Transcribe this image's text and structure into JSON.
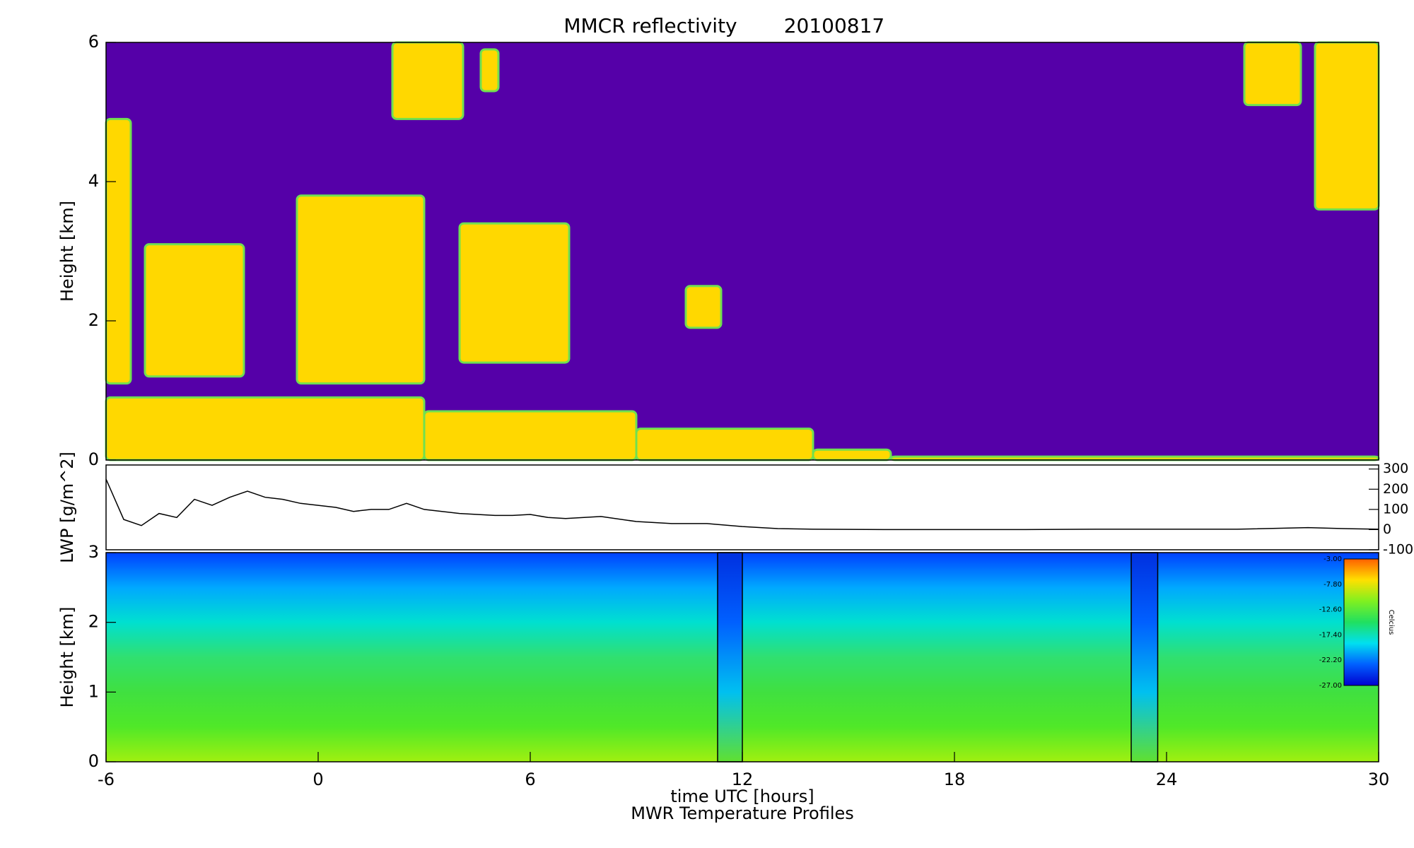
{
  "chart_data": [
    {
      "type": "heatmap",
      "title": "MMCR reflectivity",
      "subtitle": "20100817",
      "y_label": "Height [km]",
      "xlim": [
        -6,
        30
      ],
      "ylim": [
        0,
        6
      ],
      "yticks": [
        0,
        2,
        4,
        6
      ],
      "background": "#5500a8",
      "color": "#ffd800",
      "regions": [
        {
          "x": [
            -6,
            -5.3
          ],
          "y": [
            1.1,
            4.9
          ]
        },
        {
          "x": [
            -6,
            3
          ],
          "y": [
            0,
            0.9
          ]
        },
        {
          "x": [
            3,
            9
          ],
          "y": [
            0,
            0.7
          ]
        },
        {
          "x": [
            9,
            14
          ],
          "y": [
            0,
            0.45
          ]
        },
        {
          "x": [
            14,
            16.2
          ],
          "y": [
            0,
            0.15
          ]
        },
        {
          "x": [
            16.2,
            30
          ],
          "y": [
            0,
            0.05
          ]
        },
        {
          "x": [
            -4.9,
            -2.1
          ],
          "y": [
            1.2,
            3.1
          ]
        },
        {
          "x": [
            -0.6,
            3.0
          ],
          "y": [
            1.1,
            3.8
          ]
        },
        {
          "x": [
            4.0,
            7.1
          ],
          "y": [
            1.4,
            3.4
          ]
        },
        {
          "x": [
            10.4,
            11.4
          ],
          "y": [
            1.9,
            2.5
          ]
        },
        {
          "x": [
            2.1,
            4.1
          ],
          "y": [
            4.9,
            6
          ]
        },
        {
          "x": [
            4.6,
            5.1
          ],
          "y": [
            5.3,
            5.9
          ]
        },
        {
          "x": [
            26.2,
            27.8
          ],
          "y": [
            5.1,
            6
          ]
        },
        {
          "x": [
            28.2,
            30
          ],
          "y": [
            3.6,
            6
          ]
        }
      ]
    },
    {
      "type": "line",
      "y_label": "LWP [g/m^2]",
      "xlim": [
        -6,
        30
      ],
      "ylim": [
        -100,
        320
      ],
      "yticks": [
        -100,
        0,
        100,
        200,
        300
      ],
      "color": "#000000",
      "x": [
        -6,
        -5.5,
        -5,
        -4.5,
        -4,
        -3.5,
        -3,
        -2.5,
        -2,
        -1.5,
        -1,
        -0.5,
        0,
        0.5,
        1,
        1.5,
        2,
        2.5,
        3,
        3.5,
        4,
        4.5,
        5,
        5.5,
        6,
        6.5,
        7,
        8,
        9,
        10,
        11,
        12,
        13,
        14,
        16,
        18,
        20,
        22,
        24,
        26,
        28,
        29,
        30
      ],
      "series": [
        {
          "values": [
            250,
            50,
            20,
            80,
            60,
            150,
            120,
            160,
            190,
            160,
            150,
            130,
            120,
            110,
            90,
            100,
            100,
            130,
            100,
            90,
            80,
            75,
            70,
            70,
            75,
            60,
            55,
            65,
            40,
            30,
            30,
            15,
            5,
            2,
            0,
            0,
            0,
            2,
            2,
            2,
            10,
            5,
            2
          ]
        }
      ]
    },
    {
      "type": "heatmap",
      "subtitle": "MWR Temperature Profiles",
      "x_label": "time UTC [hours]",
      "y_label": "Height [km]",
      "xlim": [
        -6,
        30
      ],
      "ylim": [
        0,
        3
      ],
      "xticks": [
        -6,
        0,
        6,
        12,
        18,
        24,
        30
      ],
      "yticks": [
        0,
        1,
        2,
        3
      ],
      "colors": [
        "#a0f010",
        "#50e828",
        "#40e040",
        "#30e070",
        "#00e0d0",
        "#00a8ff",
        "#0040ff"
      ],
      "gap_colors": [
        "#60e030",
        "#00c0f0",
        "#0060ff",
        "#0030e0"
      ],
      "gaps": [
        [
          11.3,
          12
        ],
        [
          23,
          23.75
        ]
      ],
      "colorbar": {
        "label": "Celcius",
        "ticks": [
          {
            "value": -3,
            "label": "-3.00"
          },
          {
            "value": -7.8,
            "label": "-7.80"
          },
          {
            "value": -12.6,
            "label": "-12.60"
          },
          {
            "value": -17.4,
            "label": "-17.40"
          },
          {
            "value": -22.2,
            "label": "-22.20"
          },
          {
            "value": -27,
            "label": "-27.00"
          }
        ],
        "colors": [
          "#0000d0",
          "#0060ff",
          "#00e0f0",
          "#20e060",
          "#80f020",
          "#ffe000",
          "#ff6000"
        ]
      }
    }
  ]
}
